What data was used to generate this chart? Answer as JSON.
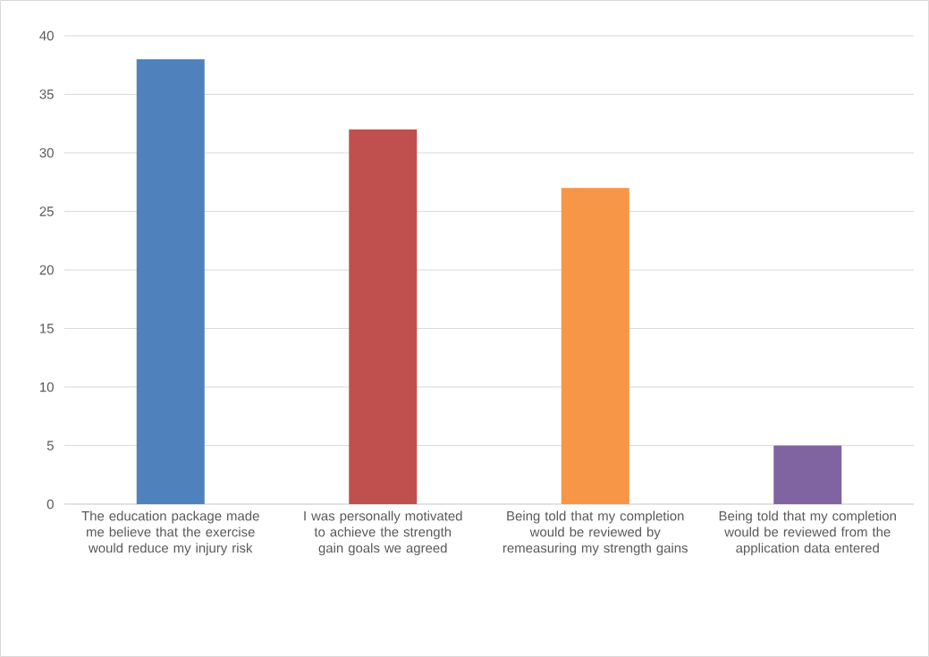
{
  "chart_data": {
    "type": "bar",
    "categories": [
      "The education package made me believe that the exercise would reduce my injury risk",
      "I was personally motivated to achieve the strength gain goals we agreed",
      "Being told that my completion would be reviewed by remeasuring my strength gains",
      "Being told that my completion would be reviewed from the application data entered"
    ],
    "values": [
      38,
      32,
      27,
      5
    ],
    "colors": [
      "#4f81bd",
      "#c0504d",
      "#f79646",
      "#8064a2"
    ],
    "ylim": [
      0,
      40
    ],
    "yticks": [
      0,
      5,
      10,
      15,
      20,
      25,
      30,
      35,
      40
    ],
    "grid": "y"
  }
}
